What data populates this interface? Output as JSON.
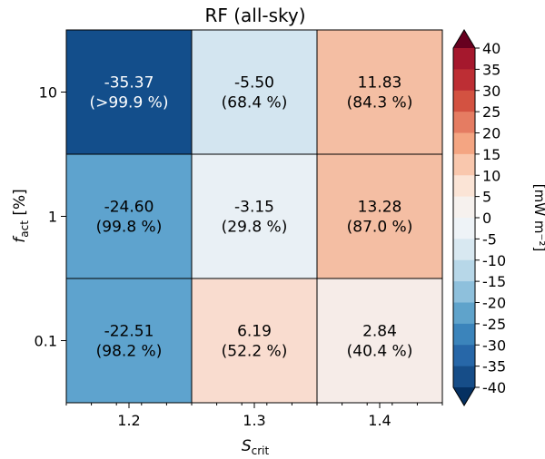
{
  "chart_data": {
    "type": "heatmap",
    "title": "RF (all-sky)",
    "xlabel": {
      "main": "S",
      "sub": "crit"
    },
    "ylabel": {
      "main": "f",
      "sub": "act",
      "unit": " [%]"
    },
    "x_categories": [
      "1.2",
      "1.3",
      "1.4"
    ],
    "y_categories": [
      "0.1",
      "1",
      "10"
    ],
    "cells": [
      {
        "x": "1.2",
        "y": "10",
        "value": -35.37,
        "value_label": "-35.37",
        "percent_label": "(>99.9 %)",
        "color": "#134e8b"
      },
      {
        "x": "1.3",
        "y": "10",
        "value": -5.5,
        "value_label": "-5.50",
        "percent_label": "(68.4 %)",
        "color": "#d3e5f0"
      },
      {
        "x": "1.4",
        "y": "10",
        "value": 11.83,
        "value_label": "11.83",
        "percent_label": "(84.3 %)",
        "color": "#f4bea3"
      },
      {
        "x": "1.2",
        "y": "1",
        "value": -24.6,
        "value_label": "-24.60",
        "percent_label": "(99.8 %)",
        "color": "#5ea3ce"
      },
      {
        "x": "1.3",
        "y": "1",
        "value": -3.15,
        "value_label": "-3.15",
        "percent_label": "(29.8 %)",
        "color": "#e9f0f5"
      },
      {
        "x": "1.4",
        "y": "1",
        "value": 13.28,
        "value_label": "13.28",
        "percent_label": "(87.0 %)",
        "color": "#f4bea3"
      },
      {
        "x": "1.2",
        "y": "0.1",
        "value": -22.51,
        "value_label": "-22.51",
        "percent_label": "(98.2 %)",
        "color": "#5ea3ce"
      },
      {
        "x": "1.3",
        "y": "0.1",
        "value": 6.19,
        "value_label": "6.19",
        "percent_label": "(52.2 %)",
        "color": "#f9dccf"
      },
      {
        "x": "1.4",
        "y": "0.1",
        "value": 2.84,
        "value_label": "2.84",
        "percent_label": "(40.4 %)",
        "color": "#f6ece8"
      }
    ],
    "colorbar": {
      "ticks": [
        "40",
        "35",
        "30",
        "25",
        "20",
        "15",
        "10",
        "5",
        "0",
        "-5",
        "-10",
        "-15",
        "-20",
        "-25",
        "-30",
        "-35",
        "-40"
      ],
      "range": [
        -40,
        40
      ],
      "label": "[mW m⁻²]",
      "extend": "both",
      "over_color": "#67001f",
      "under_color": "#053061",
      "band_colors_top_to_bottom": [
        "#a5182d",
        "#bd2e34",
        "#d35241",
        "#e57c62",
        "#f4a582",
        "#f9c7ad",
        "#fbe4d6",
        "#f6f1ee",
        "#eef3f7",
        "#d8e8f1",
        "#b7d7e8",
        "#8ec0dc",
        "#5fa3cb",
        "#3b84bb",
        "#2767a8",
        "#164d88"
      ]
    }
  }
}
